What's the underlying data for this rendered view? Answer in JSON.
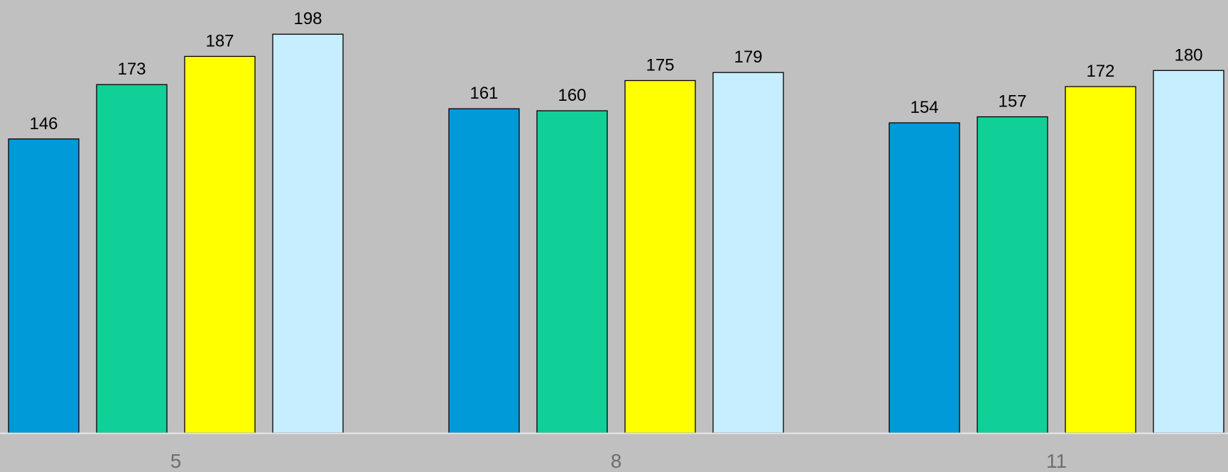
{
  "chart_data": {
    "type": "bar",
    "title": "",
    "xlabel": "",
    "ylabel": "",
    "categories": [
      "5",
      "8",
      "11"
    ],
    "series": [
      {
        "color": "#009ad8",
        "values": [
          146,
          161,
          154
        ]
      },
      {
        "color": "#10d098",
        "values": [
          173,
          160,
          157
        ]
      },
      {
        "color": "#ffff00",
        "values": [
          187,
          175,
          172
        ]
      },
      {
        "color": "#c6eeff",
        "values": [
          198,
          179,
          180
        ]
      }
    ],
    "ylim": [
      0,
      215
    ],
    "grid": false,
    "legend": "none",
    "background": "#c0c0c0"
  }
}
